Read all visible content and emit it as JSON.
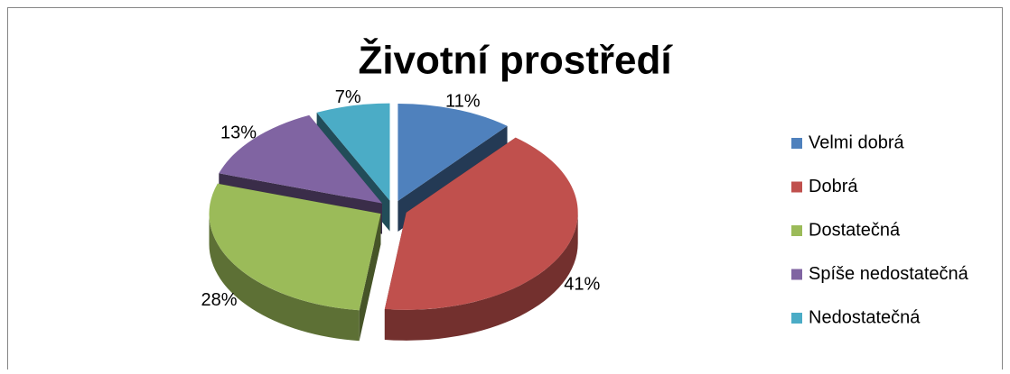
{
  "chart_data": {
    "type": "pie",
    "title": "Životní prostředí",
    "categories": [
      "Velmi dobrá",
      "Dobrá",
      "Dostatečná",
      "Spíše nedostatečná",
      "Nedostatečná"
    ],
    "values": [
      11,
      41,
      28,
      13,
      7
    ],
    "value_labels": [
      "11%",
      "41%",
      "28%",
      "13%",
      "7%"
    ],
    "colors": [
      "#4f81bd",
      "#c0504d",
      "#9bbb59",
      "#8064a2",
      "#4bacc6"
    ],
    "legend": "right"
  }
}
